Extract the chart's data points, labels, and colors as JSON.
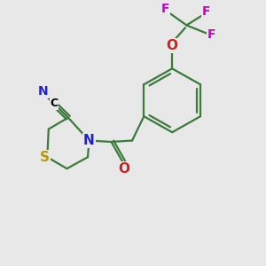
{
  "bg_color": "#e8e8e8",
  "bond_color": "#3a7a3a",
  "N_color": "#2020cc",
  "O_color": "#cc2020",
  "S_color": "#b8960a",
  "F_color": "#cc00cc",
  "C_color": "#000000",
  "line_width": 1.6,
  "figsize": [
    3.0,
    3.0
  ],
  "dpi": 100,
  "xlim": [
    0,
    10
  ],
  "ylim": [
    0,
    10
  ]
}
